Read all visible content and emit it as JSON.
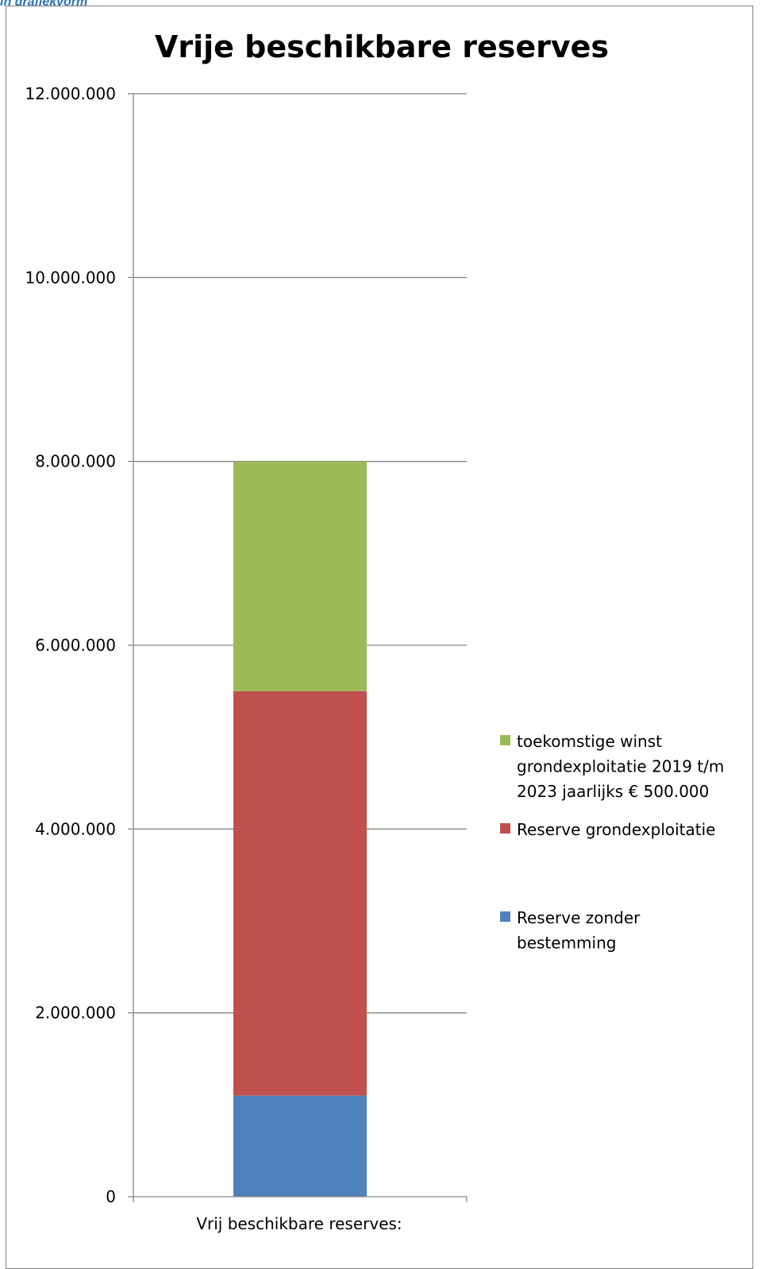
{
  "page": {
    "heading_snippet": "in grafiekvorm"
  },
  "colors": {
    "reserve_zonder_bestemming": "#4f81bd",
    "reserve_grondexploitatie": "#c0504d",
    "toekomstige_winst": "#9bbb59",
    "gridline": "#868686",
    "axis": "#868686"
  },
  "chart_data": {
    "type": "bar",
    "stacked": true,
    "title": "Vrije beschikbare reserves",
    "xlabel": "",
    "ylabel": "",
    "ylim": [
      0,
      12000000
    ],
    "ytick_labels": [
      "0",
      "2.000.000",
      "4.000.000",
      "6.000.000",
      "8.000.000",
      "10.000.000",
      "12.000.000"
    ],
    "ytick_values": [
      0,
      2000000,
      4000000,
      6000000,
      8000000,
      10000000,
      12000000
    ],
    "categories": [
      "Vrij beschikbare reserves:"
    ],
    "grid": true,
    "legend_position": "right",
    "series": [
      {
        "name": "Reserve zonder bestemming",
        "values": [
          1100000
        ],
        "color_key": "reserve_zonder_bestemming"
      },
      {
        "name": "Reserve grondexploitatie",
        "values": [
          4400000
        ],
        "color_key": "reserve_grondexploitatie"
      },
      {
        "name": "toekomstige winst grondexploitatie 2019 t/m 2023 jaarlijks € 500.000",
        "values": [
          2500000
        ],
        "color_key": "toekomstige_winst"
      }
    ],
    "legend_entries": [
      {
        "lines": [
          "toekomstige winst",
          "grondexploitatie 2019 t/m",
          "2023 jaarlijks € 500.000"
        ],
        "color_key": "toekomstige_winst"
      },
      {
        "lines": [
          "Reserve grondexploitatie"
        ],
        "color_key": "reserve_grondexploitatie"
      },
      {
        "lines": [
          "Reserve zonder",
          "bestemming"
        ],
        "color_key": "reserve_zonder_bestemming"
      }
    ]
  }
}
